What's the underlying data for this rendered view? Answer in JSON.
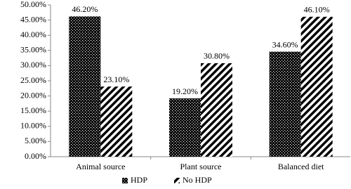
{
  "chart_data": {
    "type": "bar",
    "categories": [
      "Animal source",
      "Plant source",
      "Balanced diet"
    ],
    "series": [
      {
        "name": "HDP",
        "color": "#000000",
        "pattern": "dots",
        "values": [
          46.2,
          19.2,
          34.6
        ],
        "value_labels": [
          "46.20%",
          "19.20%",
          "34.60%"
        ]
      },
      {
        "name": "No HDP",
        "color": "#000000",
        "pattern": "stripes",
        "values": [
          23.1,
          30.8,
          46.1
        ],
        "value_labels": [
          "23.10%",
          "30.80%",
          "46.10%"
        ]
      }
    ],
    "ylim": [
      0,
      50
    ],
    "yticks": [
      {
        "value": 0,
        "label": "0.00%"
      },
      {
        "value": 5,
        "label": "5.00%"
      },
      {
        "value": 10,
        "label": "10.00%"
      },
      {
        "value": 15,
        "label": "15.00%"
      },
      {
        "value": 20,
        "label": "20.00%"
      },
      {
        "value": 25,
        "label": "25.00%"
      },
      {
        "value": 30,
        "label": "30.00%"
      },
      {
        "value": 35,
        "label": "35.00%"
      },
      {
        "value": 40,
        "label": "40.00%"
      },
      {
        "value": 45,
        "label": "45.00%"
      },
      {
        "value": 50,
        "label": "50.00%"
      }
    ],
    "grid": false,
    "legend": "bottom"
  }
}
